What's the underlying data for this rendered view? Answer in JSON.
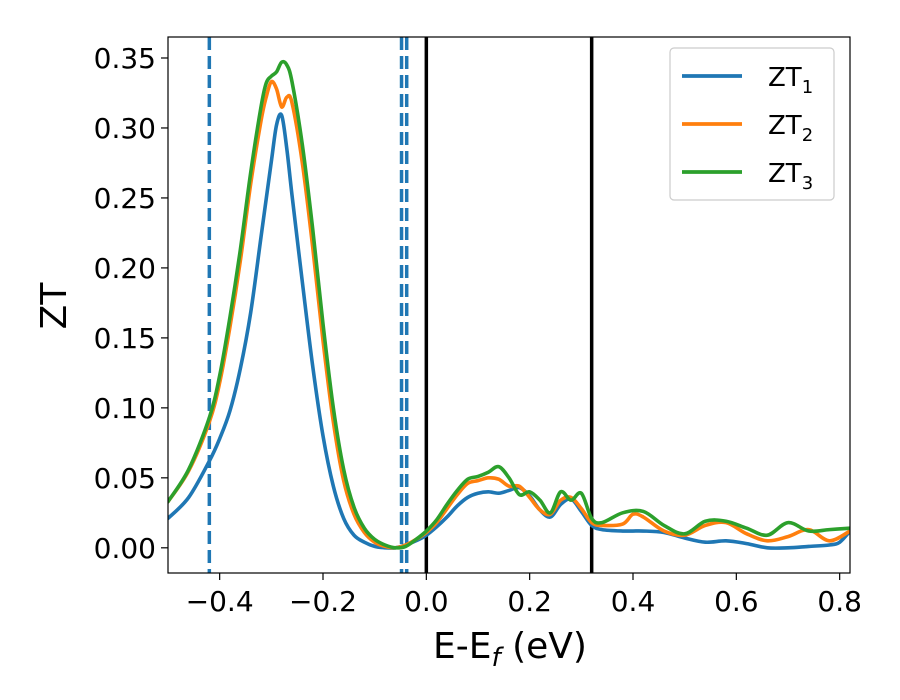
{
  "chart_data": {
    "type": "line",
    "title": "",
    "xlabel": "E-E",
    "xlabel_subscript": "f",
    "xlabel_suffix": " (eV)",
    "ylabel": "ZT",
    "xlim": [
      -0.5,
      0.82
    ],
    "ylim": [
      -0.018,
      0.365
    ],
    "xticks": [
      -0.4,
      -0.2,
      0.0,
      0.2,
      0.4,
      0.6,
      0.8
    ],
    "xtick_labels": [
      "−0.4",
      "−0.2",
      "0.0",
      "0.2",
      "0.4",
      "0.6",
      "0.8"
    ],
    "yticks": [
      0.0,
      0.05,
      0.1,
      0.15,
      0.2,
      0.25,
      0.3,
      0.35
    ],
    "ytick_labels": [
      "0.00",
      "0.05",
      "0.10",
      "0.15",
      "0.20",
      "0.25",
      "0.30",
      "0.35"
    ],
    "grid": false,
    "legend_position": "top-right",
    "series": [
      {
        "name": "ZT",
        "name_subscript": "1",
        "color": "#1f77b4",
        "x": [
          -0.5,
          -0.46,
          -0.42,
          -0.4,
          -0.38,
          -0.36,
          -0.34,
          -0.32,
          -0.3,
          -0.29,
          -0.28,
          -0.27,
          -0.26,
          -0.24,
          -0.22,
          -0.2,
          -0.18,
          -0.16,
          -0.14,
          -0.12,
          -0.1,
          -0.08,
          -0.06,
          -0.04,
          -0.02,
          0.0,
          0.02,
          0.04,
          0.06,
          0.08,
          0.1,
          0.12,
          0.14,
          0.16,
          0.18,
          0.2,
          0.22,
          0.24,
          0.26,
          0.28,
          0.3,
          0.32,
          0.34,
          0.38,
          0.42,
          0.46,
          0.5,
          0.54,
          0.58,
          0.62,
          0.66,
          0.7,
          0.74,
          0.78,
          0.8,
          0.82
        ],
        "y": [
          0.021,
          0.036,
          0.062,
          0.078,
          0.098,
          0.128,
          0.168,
          0.222,
          0.276,
          0.302,
          0.309,
          0.285,
          0.252,
          0.19,
          0.13,
          0.08,
          0.044,
          0.021,
          0.009,
          0.004,
          0.001,
          0.0,
          0.0,
          0.002,
          0.005,
          0.009,
          0.015,
          0.022,
          0.03,
          0.036,
          0.039,
          0.04,
          0.039,
          0.041,
          0.043,
          0.037,
          0.027,
          0.022,
          0.031,
          0.035,
          0.026,
          0.016,
          0.013,
          0.012,
          0.012,
          0.011,
          0.007,
          0.004,
          0.005,
          0.003,
          0.0,
          0.0,
          0.001,
          0.002,
          0.004,
          0.012
        ]
      },
      {
        "name": "ZT",
        "name_subscript": "2",
        "color": "#ff7f0e",
        "x": [
          -0.5,
          -0.46,
          -0.42,
          -0.4,
          -0.38,
          -0.36,
          -0.34,
          -0.32,
          -0.31,
          -0.3,
          -0.29,
          -0.28,
          -0.27,
          -0.26,
          -0.24,
          -0.22,
          -0.2,
          -0.18,
          -0.16,
          -0.14,
          -0.12,
          -0.1,
          -0.08,
          -0.06,
          -0.04,
          -0.02,
          0.0,
          0.02,
          0.04,
          0.06,
          0.08,
          0.1,
          0.12,
          0.14,
          0.16,
          0.18,
          0.2,
          0.22,
          0.24,
          0.26,
          0.28,
          0.3,
          0.32,
          0.34,
          0.38,
          0.4,
          0.42,
          0.46,
          0.5,
          0.54,
          0.58,
          0.62,
          0.66,
          0.7,
          0.74,
          0.78,
          0.82
        ],
        "y": [
          0.033,
          0.055,
          0.09,
          0.118,
          0.158,
          0.205,
          0.26,
          0.305,
          0.322,
          0.333,
          0.328,
          0.315,
          0.322,
          0.318,
          0.275,
          0.215,
          0.148,
          0.09,
          0.048,
          0.024,
          0.011,
          0.004,
          0.001,
          0.0,
          0.002,
          0.006,
          0.011,
          0.018,
          0.028,
          0.038,
          0.046,
          0.048,
          0.05,
          0.049,
          0.044,
          0.044,
          0.036,
          0.027,
          0.024,
          0.034,
          0.036,
          0.028,
          0.018,
          0.016,
          0.017,
          0.024,
          0.022,
          0.012,
          0.009,
          0.016,
          0.018,
          0.01,
          0.005,
          0.008,
          0.013,
          0.005,
          0.012
        ]
      },
      {
        "name": "ZT",
        "name_subscript": "3",
        "color": "#2ca02c",
        "x": [
          -0.5,
          -0.46,
          -0.42,
          -0.4,
          -0.38,
          -0.36,
          -0.34,
          -0.32,
          -0.31,
          -0.3,
          -0.29,
          -0.28,
          -0.27,
          -0.26,
          -0.24,
          -0.22,
          -0.2,
          -0.18,
          -0.16,
          -0.14,
          -0.12,
          -0.1,
          -0.08,
          -0.06,
          -0.04,
          -0.02,
          0.0,
          0.02,
          0.04,
          0.06,
          0.08,
          0.1,
          0.12,
          0.14,
          0.16,
          0.18,
          0.2,
          0.22,
          0.24,
          0.26,
          0.28,
          0.3,
          0.32,
          0.34,
          0.38,
          0.42,
          0.46,
          0.5,
          0.54,
          0.58,
          0.62,
          0.66,
          0.7,
          0.74,
          0.78,
          0.82
        ],
        "y": [
          0.033,
          0.056,
          0.093,
          0.123,
          0.165,
          0.213,
          0.268,
          0.315,
          0.332,
          0.337,
          0.34,
          0.347,
          0.345,
          0.333,
          0.288,
          0.228,
          0.16,
          0.1,
          0.056,
          0.029,
          0.014,
          0.006,
          0.002,
          0.0,
          0.001,
          0.006,
          0.012,
          0.02,
          0.031,
          0.041,
          0.049,
          0.051,
          0.054,
          0.058,
          0.05,
          0.038,
          0.04,
          0.034,
          0.025,
          0.04,
          0.034,
          0.039,
          0.021,
          0.018,
          0.025,
          0.026,
          0.016,
          0.01,
          0.019,
          0.019,
          0.014,
          0.009,
          0.018,
          0.012,
          0.013,
          0.014
        ]
      }
    ],
    "vertical_lines": [
      {
        "x": -0.42,
        "color": "#1f77b4",
        "style": "dashed"
      },
      {
        "x": -0.048,
        "color": "#1f77b4",
        "style": "dashed"
      },
      {
        "x": -0.038,
        "color": "#1f77b4",
        "style": "dashed"
      },
      {
        "x": 0.0,
        "color": "#000000",
        "style": "solid"
      },
      {
        "x": 0.32,
        "color": "#000000",
        "style": "solid"
      }
    ]
  }
}
